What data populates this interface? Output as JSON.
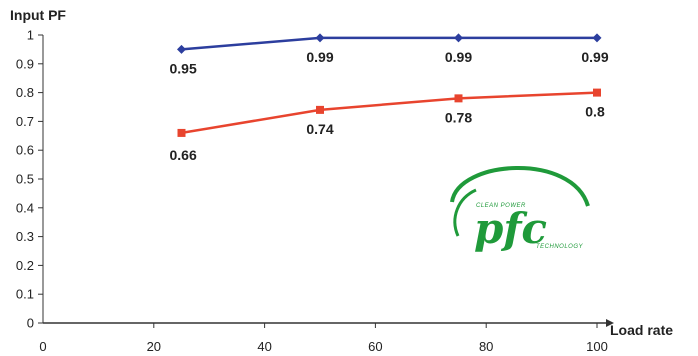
{
  "chart_data": {
    "type": "line",
    "ylabel": "Input PF",
    "xlabel": "Load rate",
    "xlim": [
      0,
      100
    ],
    "ylim": [
      0,
      1
    ],
    "x_ticks": [
      0,
      20,
      40,
      60,
      80,
      100
    ],
    "y_ticks": [
      0,
      0.1,
      0.2,
      0.3,
      0.4,
      0.5,
      0.6,
      0.7,
      0.8,
      0.9,
      1
    ],
    "grid": false,
    "series": [
      {
        "x": [
          25,
          50,
          75,
          100
        ],
        "values": [
          0.95,
          0.99,
          0.99,
          0.99
        ],
        "labels": [
          "0.95",
          "0.99",
          "0.99",
          "0.99"
        ],
        "color": "#2c3e9e",
        "marker": "diamond"
      },
      {
        "x": [
          25,
          50,
          75,
          100
        ],
        "values": [
          0.66,
          0.74,
          0.78,
          0.8
        ],
        "labels": [
          "0.66",
          "0.74",
          "0.78",
          "0.8"
        ],
        "color": "#e8442e",
        "marker": "square"
      }
    ]
  },
  "logo": {
    "main": "pfc",
    "top": "CLEAN POWER",
    "bottom": "TECHNOLOGY",
    "color": "#1f9a3a"
  }
}
